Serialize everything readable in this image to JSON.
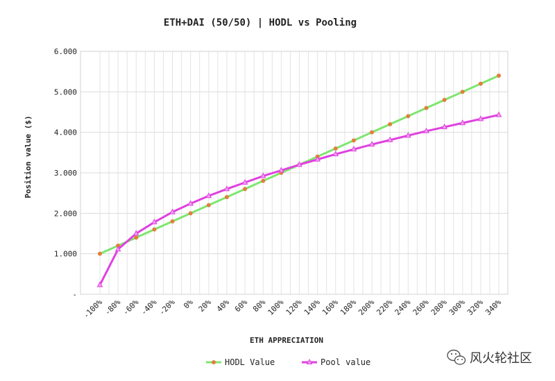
{
  "chart_data": {
    "type": "line",
    "title": "ETH+DAI (50/50) | HODL vs Pooling",
    "xlabel": "ETH APPRECIATION",
    "ylabel": "Position value ($)",
    "ylim": [
      0,
      6
    ],
    "y_ticks": [
      "-",
      "1.000",
      "2.000",
      "3.000",
      "4.000",
      "5.000",
      "6.000"
    ],
    "categories": [
      "-100%",
      "-80%",
      "-60%",
      "-40%",
      "-20%",
      "0%",
      "20%",
      "40%",
      "60%",
      "80%",
      "100%",
      "120%",
      "140%",
      "160%",
      "180%",
      "200%",
      "220%",
      "240%",
      "260%",
      "280%",
      "300%",
      "320%",
      "340%"
    ],
    "x_plot": [
      -100,
      -90,
      -80,
      -70,
      -60,
      -50,
      -40,
      -30,
      -20,
      -10,
      0,
      10,
      20,
      30,
      40,
      50,
      60,
      70,
      80,
      90,
      100,
      110,
      120,
      130,
      140,
      150,
      160,
      170,
      180,
      190,
      200,
      210,
      220,
      230,
      240,
      250,
      260,
      270,
      280,
      290,
      300,
      310,
      320,
      330,
      340
    ],
    "x_data": [
      -100,
      -80,
      -60,
      -40,
      -20,
      0,
      20,
      40,
      60,
      80,
      100,
      120,
      140,
      160,
      180,
      200,
      220,
      240,
      260,
      280,
      300,
      320,
      340
    ],
    "series": [
      {
        "name": "HODL Value",
        "color": "#7fe66f",
        "marker_color": "#e0803a",
        "marker": "circle",
        "values": [
          1.0,
          1.2,
          1.4,
          1.6,
          1.8,
          2.0,
          2.2,
          2.4,
          2.6,
          2.8,
          3.0,
          3.2,
          3.4,
          3.6,
          3.8,
          4.0,
          4.2,
          4.4,
          4.6,
          4.8,
          5.0,
          5.2,
          5.4
        ]
      },
      {
        "name": "Pool value",
        "color": "#e040e0",
        "marker_color": "#e040e0",
        "marker": "triangle",
        "values": [
          0.23,
          1.11,
          1.5,
          1.78,
          2.03,
          2.24,
          2.43,
          2.6,
          2.76,
          2.92,
          3.06,
          3.2,
          3.33,
          3.46,
          3.58,
          3.7,
          3.81,
          3.92,
          4.03,
          4.13,
          4.23,
          4.33,
          4.43
        ]
      }
    ],
    "grid": true,
    "legend_position": "bottom-center"
  },
  "watermark": {
    "text": "风火轮社区",
    "icon": "wechat-icon"
  }
}
